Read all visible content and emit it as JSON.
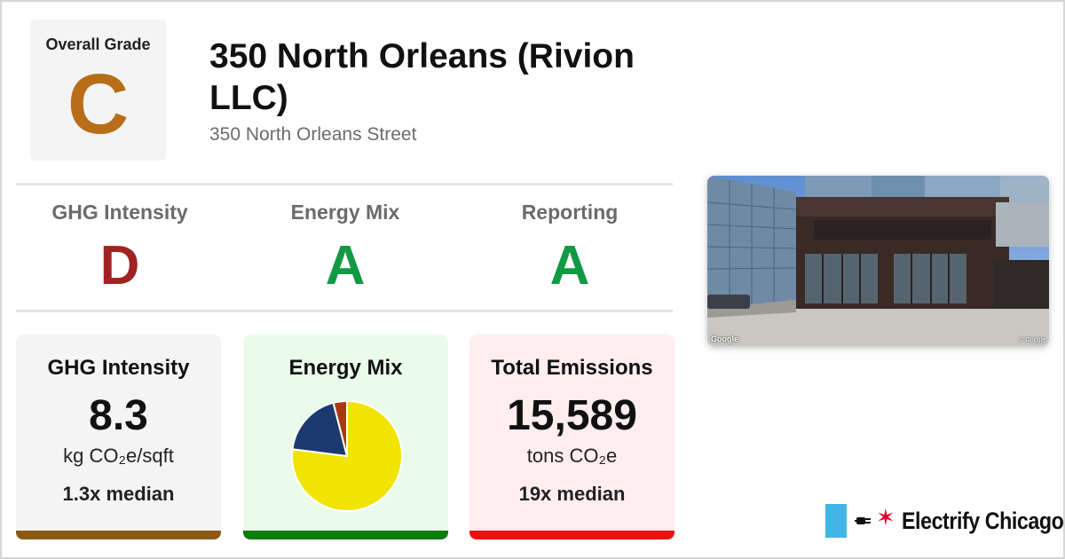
{
  "overall": {
    "label": "Overall Grade",
    "grade": "C",
    "color": "#b86d18"
  },
  "building": {
    "name": "350 North Orleans (Rivion LLC)",
    "address": "350 North Orleans Street"
  },
  "metrics": [
    {
      "label": "GHG Intensity",
      "grade": "D",
      "color": "#a02222"
    },
    {
      "label": "Energy Mix",
      "grade": "A",
      "color": "#119944"
    },
    {
      "label": "Reporting",
      "grade": "A",
      "color": "#119944"
    }
  ],
  "cards": {
    "ghg": {
      "title": "GHG Intensity",
      "value": "8.3",
      "unit": "kg CO₂e/sqft",
      "median": "1.3x median",
      "bg": "#f4f4f4",
      "bar": "#8b5a14"
    },
    "mix": {
      "title": "Energy Mix",
      "bg": "#ebfbeb",
      "bar": "#0c7d0c"
    },
    "total": {
      "title": "Total Emissions",
      "value": "15,589",
      "unit": "tons CO₂e",
      "median": "19x median",
      "bg": "#ffedf0",
      "bar": "#ee1111"
    }
  },
  "chart_data": {
    "type": "pie",
    "slices": [
      {
        "value": 0.77,
        "color": "#f0e400"
      },
      {
        "value": 0.19,
        "color": "#1d3a6e"
      },
      {
        "value": 0.04,
        "color": "#a83a12"
      }
    ]
  },
  "photo": {
    "watermark_left": "Google",
    "watermark_right": "© Google"
  },
  "brand": {
    "name": "Electrify Chicago",
    "square_color": "#41b6e6",
    "star_color": "#e4002b"
  }
}
